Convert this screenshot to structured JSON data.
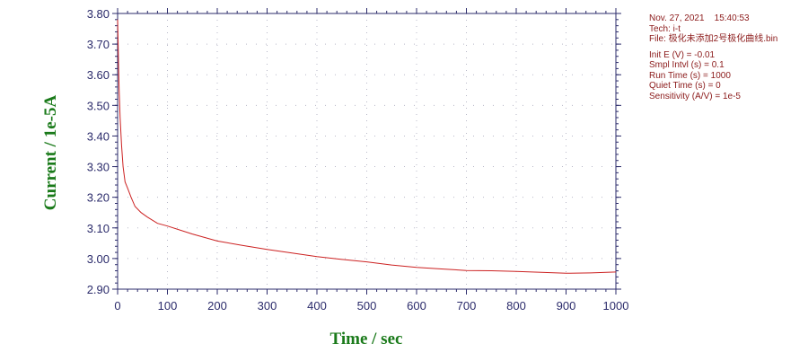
{
  "chart_data": {
    "type": "line",
    "xlabel": "Time / sec",
    "ylabel": "Current / 1e-5A",
    "xlim": [
      0,
      1000
    ],
    "ylim": [
      2.9,
      3.8
    ],
    "xticks": [
      "0",
      "100",
      "200",
      "300",
      "400",
      "500",
      "600",
      "700",
      "800",
      "900",
      "1000"
    ],
    "yticks": [
      "2.90",
      "3.00",
      "3.10",
      "3.20",
      "3.30",
      "3.40",
      "3.50",
      "3.60",
      "3.70",
      "3.80"
    ],
    "grid": true,
    "series": [
      {
        "color": "#cc2222",
        "x": [
          0,
          1,
          2,
          3,
          5,
          8,
          11,
          15,
          20,
          27,
          35,
          47,
          60,
          80,
          100,
          150,
          200,
          250,
          300,
          350,
          400,
          450,
          500,
          550,
          600,
          650,
          700,
          750,
          800,
          850,
          900,
          950,
          1000
        ],
        "y": [
          3.78,
          3.7,
          3.62,
          3.55,
          3.46,
          3.37,
          3.3,
          3.25,
          3.23,
          3.2,
          3.17,
          3.15,
          3.135,
          3.115,
          3.106,
          3.08,
          3.057,
          3.043,
          3.03,
          3.018,
          3.006,
          2.997,
          2.989,
          2.979,
          2.971,
          2.966,
          2.961,
          2.96,
          2.958,
          2.955,
          2.952,
          2.953,
          2.956
        ]
      }
    ]
  },
  "colors": {
    "axis": "#2b2b6b",
    "label": "#1a7a1a",
    "info": "#8b1a1a"
  },
  "info": {
    "date": "Nov. 27, 2021    15:40:53",
    "tech": "Tech: i-t",
    "file": "File: 极化未添加2号极化曲线.bin",
    "init_e": "Init E (V) = -0.01",
    "smpl_intvl": "Smpl Intvl (s) = 0.1",
    "run_time": "Run Time (s) = 1000",
    "quiet_time": "Quiet Time (s) = 0",
    "sensitivity": "Sensitivity (A/V) = 1e-5"
  }
}
